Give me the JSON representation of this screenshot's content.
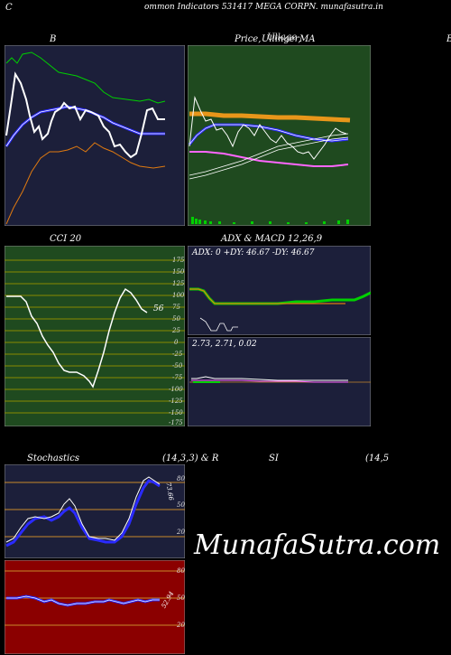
{
  "header": {
    "left_letter": "C",
    "title": "ommon  Indicators 531417 MEGA CORPN. munafasutra.in"
  },
  "bollinger": {
    "label": "B"
  },
  "price_panel": {
    "label_price": "Price,",
    "label_overlap1": "Ullinger,",
    "label_overlap2": "Ullage",
    "label_ma": "MA",
    "right_letter": "B"
  },
  "cci": {
    "label": "CCI 20",
    "value": "56",
    "ticks": [
      "175",
      "150",
      "125",
      "100",
      "75",
      "50",
      "25",
      "0",
      "-25",
      "-50",
      "-75",
      "-100",
      "-125",
      "-150",
      "-175"
    ]
  },
  "adx": {
    "label": "ADX  & MACD 12,26,9",
    "readout": "ADX: 0   +DY: 46.67 -DY: 46.67"
  },
  "macd": {
    "readout": "2.73,  2.71,  0.02"
  },
  "stochastics": {
    "label": "Stochastics",
    "params": "(14,3,3) & R",
    "value": "73.66",
    "ticks": [
      "80",
      "50",
      "20"
    ]
  },
  "rsi": {
    "label": "SI",
    "params": "(14,5",
    "value": "52.94",
    "ticks": [
      "80",
      "50",
      "20"
    ]
  },
  "watermark": "MunafaSutra.com",
  "colors": {
    "bg": "#000000",
    "navy_panel": "#1c1f3a",
    "green_panel": "#1f4a1f",
    "red_panel": "#8b0000",
    "olive_grid": "#8a8a00",
    "orange_grid": "#c98a2a"
  }
}
